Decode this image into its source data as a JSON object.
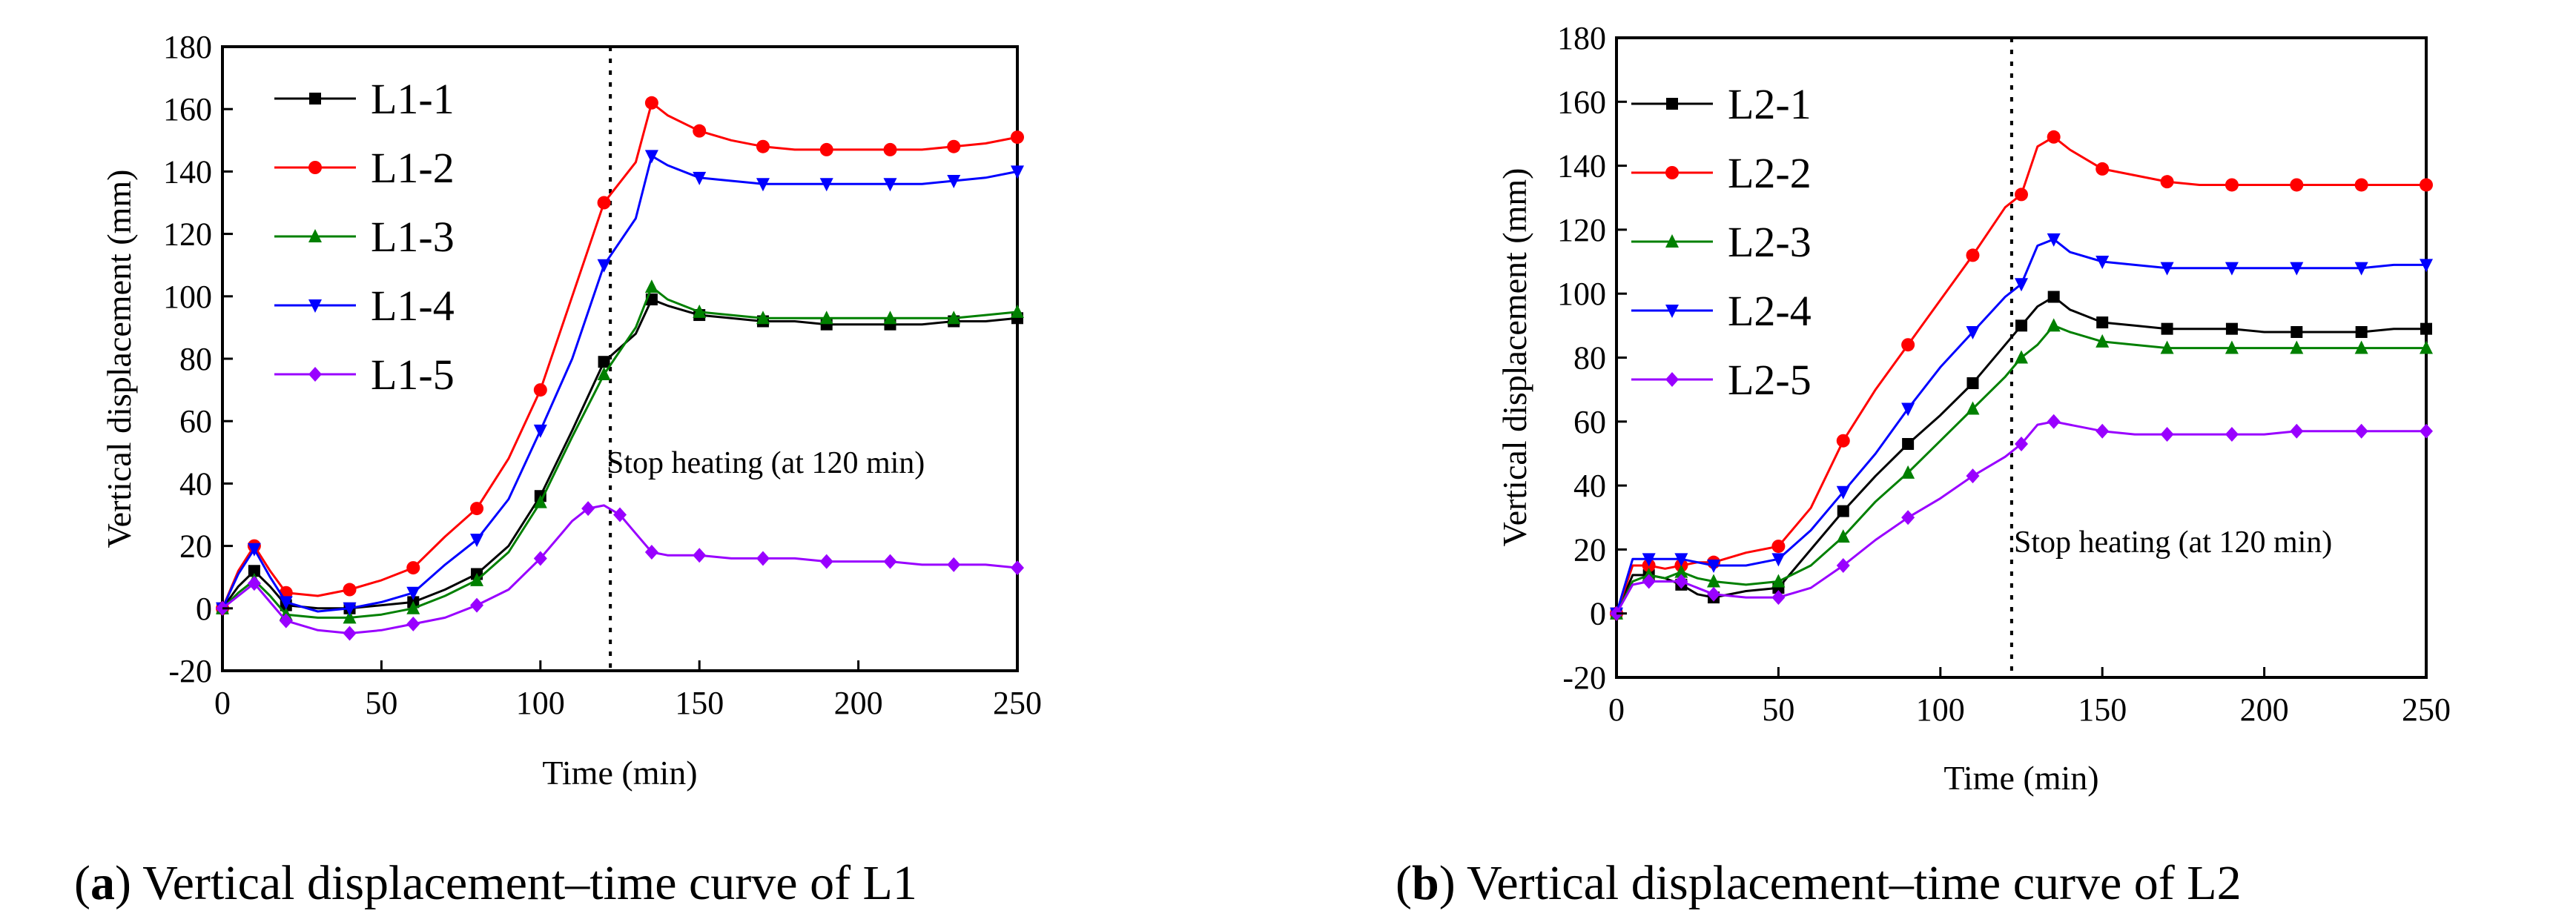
{
  "chart_data": [
    {
      "type": "line",
      "ylabel": "Vertical displacement (mm)",
      "xlabel": "Time (min)",
      "xlim": [
        0,
        250
      ],
      "ylim": [
        -20,
        180
      ],
      "xticks": [
        0,
        50,
        100,
        150,
        200,
        250
      ],
      "yticks": [
        -20,
        0,
        20,
        40,
        60,
        80,
        100,
        120,
        140,
        160,
        180
      ],
      "annotation": {
        "x": 122,
        "text": "Stop heating (at 120 min)"
      },
      "caption": {
        "letter": "a",
        "text": ") Vertical displacement–time curve of L1",
        "open": "("
      },
      "series": [
        {
          "name": "L1-1",
          "color": "#000000",
          "marker": "square",
          "x": [
            0,
            5,
            10,
            15,
            20,
            30,
            40,
            50,
            60,
            70,
            80,
            90,
            100,
            110,
            120,
            130,
            135,
            140,
            150,
            160,
            170,
            180,
            190,
            200,
            210,
            220,
            230,
            240,
            250
          ],
          "y": [
            0,
            7,
            12,
            7,
            1,
            0,
            0,
            1,
            2,
            6,
            11,
            20,
            36,
            57,
            79,
            88,
            99,
            97,
            94,
            93,
            92,
            92,
            91,
            91,
            91,
            91,
            92,
            92,
            93
          ]
        },
        {
          "name": "L1-2",
          "color": "#ff0000",
          "marker": "circle",
          "x": [
            0,
            5,
            10,
            15,
            20,
            30,
            40,
            50,
            60,
            70,
            80,
            90,
            100,
            110,
            120,
            130,
            135,
            140,
            150,
            160,
            170,
            180,
            190,
            200,
            210,
            220,
            230,
            240,
            250
          ],
          "y": [
            0,
            12,
            20,
            12,
            5,
            4,
            6,
            9,
            13,
            23,
            32,
            48,
            70,
            100,
            130,
            143,
            162,
            158,
            153,
            150,
            148,
            147,
            147,
            147,
            147,
            147,
            148,
            149,
            151
          ]
        },
        {
          "name": "L1-3",
          "color": "#008000",
          "marker": "triangle-up",
          "x": [
            0,
            5,
            10,
            15,
            20,
            30,
            40,
            50,
            60,
            70,
            80,
            90,
            100,
            110,
            120,
            130,
            135,
            140,
            150,
            160,
            170,
            180,
            190,
            200,
            210,
            220,
            230,
            240,
            250
          ],
          "y": [
            0,
            5,
            9,
            4,
            -2,
            -3,
            -3,
            -2,
            0,
            4,
            9,
            18,
            34,
            55,
            75,
            90,
            103,
            99,
            95,
            94,
            93,
            93,
            93,
            93,
            93,
            93,
            93,
            94,
            95
          ]
        },
        {
          "name": "L1-4",
          "color": "#0000ff",
          "marker": "triangle-down",
          "x": [
            0,
            5,
            10,
            15,
            20,
            30,
            40,
            50,
            60,
            70,
            80,
            90,
            100,
            110,
            120,
            130,
            135,
            140,
            150,
            160,
            170,
            180,
            190,
            200,
            210,
            220,
            230,
            240,
            250
          ],
          "y": [
            0,
            11,
            19,
            10,
            2,
            -1,
            0,
            2,
            5,
            14,
            22,
            35,
            57,
            80,
            110,
            125,
            145,
            142,
            138,
            137,
            136,
            136,
            136,
            136,
            136,
            136,
            137,
            138,
            140
          ]
        },
        {
          "name": "L1-5",
          "color": "#9900ff",
          "marker": "diamond",
          "x": [
            0,
            5,
            10,
            15,
            20,
            30,
            40,
            50,
            60,
            70,
            80,
            90,
            100,
            110,
            115,
            120,
            125,
            130,
            135,
            140,
            150,
            160,
            170,
            180,
            190,
            200,
            210,
            220,
            230,
            240,
            250
          ],
          "y": [
            0,
            4,
            8,
            2,
            -4,
            -7,
            -8,
            -7,
            -5,
            -3,
            1,
            6,
            16,
            28,
            32,
            33,
            30,
            24,
            18,
            17,
            17,
            16,
            16,
            16,
            15,
            15,
            15,
            14,
            14,
            14,
            13
          ]
        }
      ]
    },
    {
      "type": "line",
      "ylabel": "Vertical displacement (mm)",
      "xlabel": "Time (min)",
      "xlim": [
        0,
        250
      ],
      "ylim": [
        -20,
        180
      ],
      "xticks": [
        0,
        50,
        100,
        150,
        200,
        250
      ],
      "yticks": [
        -20,
        0,
        20,
        40,
        60,
        80,
        100,
        120,
        140,
        160,
        180
      ],
      "annotation": {
        "x": 122,
        "text": "Stop heating (at 120 min)"
      },
      "caption": {
        "letter": "b",
        "text": ") Vertical displacement–time curve of L2",
        "open": "("
      },
      "series": [
        {
          "name": "L2-1",
          "color": "#000000",
          "marker": "square",
          "x": [
            0,
            5,
            10,
            15,
            20,
            25,
            30,
            40,
            50,
            60,
            70,
            80,
            90,
            100,
            110,
            120,
            125,
            130,
            135,
            140,
            150,
            160,
            170,
            180,
            190,
            200,
            210,
            220,
            230,
            240,
            250
          ],
          "y": [
            0,
            12,
            12,
            11,
            9,
            6,
            5,
            7,
            8,
            20,
            32,
            43,
            53,
            62,
            72,
            84,
            90,
            96,
            99,
            95,
            91,
            90,
            89,
            89,
            89,
            88,
            88,
            88,
            88,
            89,
            89
          ]
        },
        {
          "name": "L2-2",
          "color": "#ff0000",
          "marker": "circle",
          "x": [
            0,
            5,
            10,
            15,
            20,
            25,
            30,
            40,
            50,
            60,
            70,
            80,
            90,
            100,
            110,
            120,
            125,
            130,
            135,
            140,
            150,
            160,
            170,
            180,
            190,
            200,
            210,
            220,
            230,
            240,
            250
          ],
          "y": [
            0,
            15,
            15,
            14,
            15,
            16,
            16,
            19,
            21,
            33,
            54,
            70,
            84,
            98,
            112,
            127,
            131,
            146,
            149,
            145,
            139,
            137,
            135,
            134,
            134,
            134,
            134,
            134,
            134,
            134,
            134
          ]
        },
        {
          "name": "L2-3",
          "color": "#008000",
          "marker": "triangle-up",
          "x": [
            0,
            5,
            10,
            15,
            20,
            25,
            30,
            40,
            50,
            60,
            70,
            80,
            90,
            100,
            110,
            120,
            125,
            130,
            135,
            140,
            150,
            160,
            170,
            180,
            190,
            200,
            210,
            220,
            230,
            240,
            250
          ],
          "y": [
            0,
            10,
            12,
            11,
            13,
            11,
            10,
            9,
            10,
            15,
            24,
            35,
            44,
            54,
            64,
            74,
            80,
            84,
            90,
            88,
            85,
            84,
            83,
            83,
            83,
            83,
            83,
            83,
            83,
            83,
            83
          ]
        },
        {
          "name": "L2-4",
          "color": "#0000ff",
          "marker": "triangle-down",
          "x": [
            0,
            5,
            10,
            15,
            20,
            25,
            30,
            40,
            50,
            60,
            70,
            80,
            90,
            100,
            110,
            120,
            125,
            130,
            135,
            140,
            150,
            160,
            170,
            180,
            190,
            200,
            210,
            220,
            230,
            240,
            250
          ],
          "y": [
            0,
            17,
            17,
            17,
            17,
            16,
            15,
            15,
            17,
            26,
            38,
            50,
            64,
            77,
            88,
            99,
            103,
            115,
            117,
            113,
            110,
            109,
            108,
            108,
            108,
            108,
            108,
            108,
            108,
            109,
            109
          ]
        },
        {
          "name": "L2-5",
          "color": "#9900ff",
          "marker": "diamond",
          "x": [
            0,
            5,
            10,
            15,
            20,
            25,
            30,
            40,
            50,
            60,
            70,
            80,
            90,
            100,
            110,
            120,
            125,
            130,
            135,
            140,
            150,
            160,
            170,
            180,
            190,
            200,
            210,
            220,
            230,
            240,
            250
          ],
          "y": [
            0,
            9,
            10,
            10,
            10,
            8,
            6,
            5,
            5,
            8,
            15,
            23,
            30,
            36,
            43,
            49,
            53,
            59,
            60,
            59,
            57,
            56,
            56,
            56,
            56,
            56,
            57,
            57,
            57,
            57,
            57
          ]
        }
      ]
    }
  ]
}
